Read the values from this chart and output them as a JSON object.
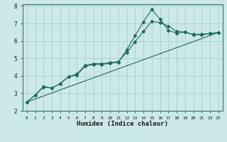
{
  "xlabel": "Humidex (Indice chaleur)",
  "ylabel": "",
  "bg_color": "#cce8e8",
  "grid_color": "#aacece",
  "line_color": "#1a6b5a",
  "xlim": [
    -0.5,
    23.5
  ],
  "ylim": [
    2,
    8.1
  ],
  "xticks": [
    0,
    1,
    2,
    3,
    4,
    5,
    6,
    7,
    8,
    9,
    10,
    11,
    12,
    13,
    14,
    15,
    16,
    17,
    18,
    19,
    20,
    21,
    22,
    23
  ],
  "yticks": [
    2,
    3,
    4,
    5,
    6,
    7,
    8
  ],
  "line1_x": [
    0,
    1,
    2,
    3,
    4,
    5,
    6,
    7,
    8,
    9,
    10,
    11,
    12,
    13,
    14,
    15,
    16,
    17,
    18,
    19,
    20,
    21,
    22,
    23
  ],
  "line1_y": [
    2.5,
    2.9,
    3.4,
    3.3,
    3.55,
    3.95,
    4.05,
    4.55,
    4.65,
    4.65,
    4.72,
    4.78,
    5.5,
    6.3,
    7.1,
    7.8,
    7.25,
    6.6,
    6.45,
    6.5,
    6.35,
    6.35,
    6.42,
    6.48
  ],
  "line2_x": [
    0,
    1,
    2,
    3,
    4,
    5,
    6,
    7,
    8,
    9,
    10,
    11,
    12,
    13,
    14,
    15,
    16,
    17,
    18,
    19,
    20,
    21,
    22,
    23
  ],
  "line2_y": [
    2.5,
    2.9,
    3.35,
    3.3,
    3.55,
    3.95,
    4.1,
    4.6,
    4.7,
    4.7,
    4.75,
    4.82,
    5.35,
    5.95,
    6.55,
    7.12,
    7.05,
    6.85,
    6.55,
    6.5,
    6.38,
    6.38,
    6.43,
    6.48
  ],
  "line3_x": [
    0,
    23
  ],
  "line3_y": [
    2.5,
    6.48
  ]
}
